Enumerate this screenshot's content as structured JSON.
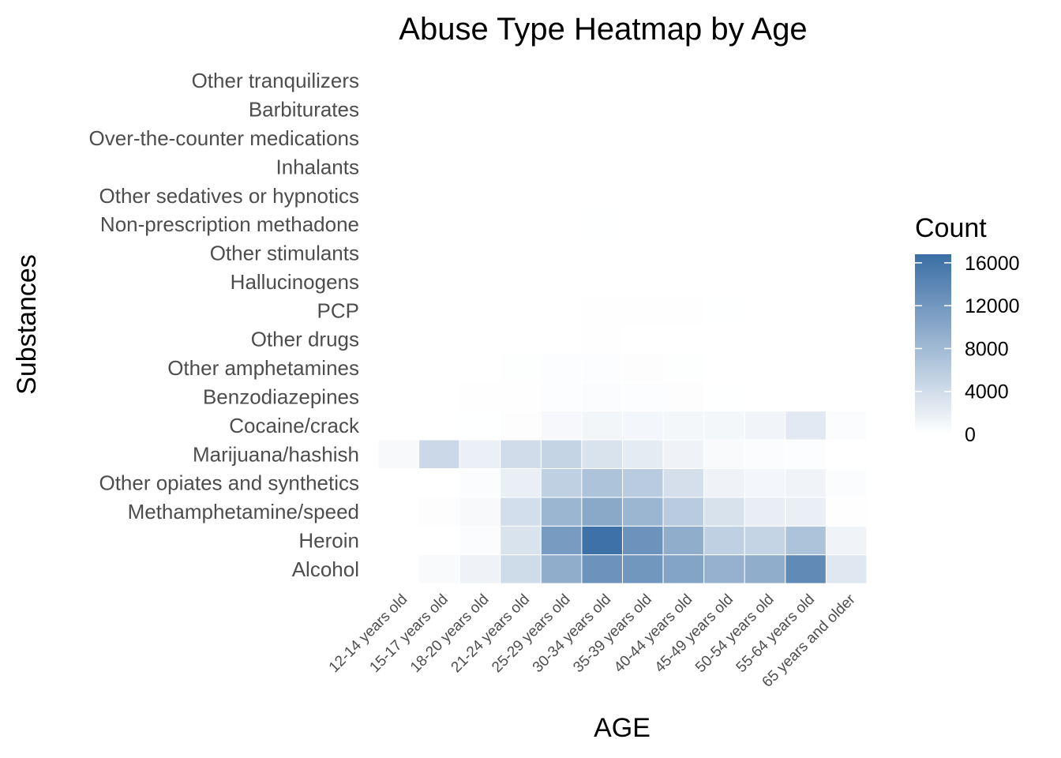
{
  "chart_data": {
    "type": "heatmap",
    "title": "Abuse Type Heatmap by Age",
    "xlabel": "AGE",
    "ylabel": "Substances",
    "x": [
      "12-14 years old",
      "15-17 years old",
      "18-20 years old",
      "21-24 years old",
      "25-29 years old",
      "30-34 years old",
      "35-39 years old",
      "40-44 years old",
      "45-49 years old",
      "50-54 years old",
      "55-64 years old",
      "65 years and older"
    ],
    "y": [
      "Alcohol",
      "Heroin",
      "Methamphetamine/speed",
      "Other opiates and synthetics",
      "Marijuana/hashish",
      "Cocaine/crack",
      "Benzodiazepines",
      "Other amphetamines",
      "Other drugs",
      "PCP",
      "Hallucinogens",
      "Other stimulants",
      "Non-prescription methadone",
      "Other sedatives or hypnotics",
      "Inhalants",
      "Over-the-counter medications",
      "Barbiturates",
      "Other tranquilizers"
    ],
    "values": [
      [
        0,
        600,
        1400,
        4200,
        9500,
        12500,
        12000,
        10500,
        9000,
        9500,
        13500,
        2700
      ],
      [
        0,
        0,
        300,
        3300,
        11500,
        16500,
        12500,
        9500,
        5500,
        5000,
        7000,
        1300
      ],
      [
        0,
        200,
        700,
        3800,
        8500,
        10000,
        8500,
        6000,
        3400,
        2000,
        1800,
        100
      ],
      [
        0,
        0,
        400,
        1800,
        5500,
        7000,
        6000,
        3700,
        1400,
        1000,
        1300,
        300
      ],
      [
        700,
        4500,
        1700,
        4000,
        5000,
        3300,
        2300,
        1400,
        600,
        400,
        250,
        0
      ],
      [
        0,
        0,
        50,
        200,
        800,
        1100,
        1000,
        900,
        900,
        1200,
        2500,
        300
      ],
      [
        0,
        0,
        80,
        120,
        250,
        350,
        250,
        200,
        50,
        0,
        0,
        0
      ],
      [
        0,
        0,
        0,
        150,
        250,
        250,
        200,
        150,
        0,
        0,
        0,
        0
      ],
      [
        0,
        0,
        0,
        0,
        0,
        120,
        0,
        0,
        0,
        0,
        0,
        0
      ],
      [
        0,
        0,
        0,
        0,
        0,
        100,
        100,
        100,
        50,
        0,
        0,
        0
      ],
      [
        0,
        0,
        0,
        0,
        0,
        0,
        0,
        0,
        0,
        0,
        0,
        0
      ],
      [
        0,
        0,
        0,
        0,
        0,
        0,
        0,
        0,
        0,
        0,
        0,
        0
      ],
      [
        0,
        0,
        0,
        0,
        0,
        50,
        0,
        0,
        0,
        0,
        0,
        0
      ],
      [
        0,
        0,
        0,
        0,
        0,
        0,
        0,
        0,
        0,
        0,
        0,
        0
      ],
      [
        0,
        0,
        0,
        0,
        0,
        0,
        0,
        0,
        0,
        0,
        0,
        0
      ],
      [
        0,
        0,
        0,
        0,
        0,
        0,
        0,
        0,
        0,
        0,
        0,
        0
      ],
      [
        0,
        0,
        0,
        0,
        0,
        0,
        0,
        0,
        0,
        0,
        0,
        0
      ],
      [
        0,
        0,
        0,
        0,
        0,
        0,
        0,
        0,
        0,
        0,
        0,
        0
      ]
    ],
    "legend": {
      "title": "Count",
      "placement": "right",
      "ticks": [
        0,
        4000,
        8000,
        12000,
        16000
      ],
      "range": [
        0,
        16800
      ]
    },
    "colors": {
      "low": "#ffffff",
      "high": "#3a6ea5"
    },
    "grid": false
  }
}
